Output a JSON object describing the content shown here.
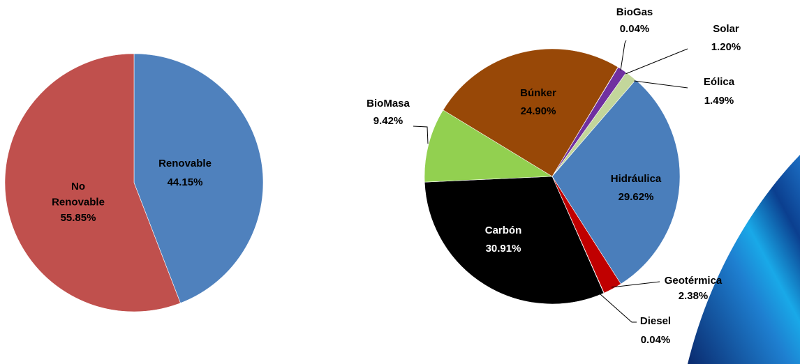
{
  "chart_data": [
    {
      "type": "pie",
      "categories": [
        "Renovable",
        "No Renovable"
      ],
      "values": [
        44.15,
        55.85
      ],
      "value_labels": [
        "44.15%",
        "55.85%"
      ],
      "colors": [
        "#4f81bd",
        "#c0504d"
      ]
    },
    {
      "type": "pie",
      "categories": [
        "BioGas",
        "Solar",
        "Eólica",
        "Hidráulica",
        "Geotérmica",
        "Diesel",
        "Carbón",
        "BioMasa",
        "Búnker"
      ],
      "values": [
        0.04,
        1.2,
        1.49,
        29.62,
        2.38,
        0.04,
        30.91,
        9.42,
        24.9
      ],
      "value_labels": [
        "0.04%",
        "1.20%",
        "1.49%",
        "29.62%",
        "2.38%",
        "0.04%",
        "30.91%",
        "9.42%",
        "24.90%"
      ],
      "colors": [
        "#4bacc6",
        "#7030a0",
        "#c3d69b",
        "#4a7ebb",
        "#c00000",
        "#ffff00",
        "#000000",
        "#92d050",
        "#984807"
      ]
    }
  ]
}
